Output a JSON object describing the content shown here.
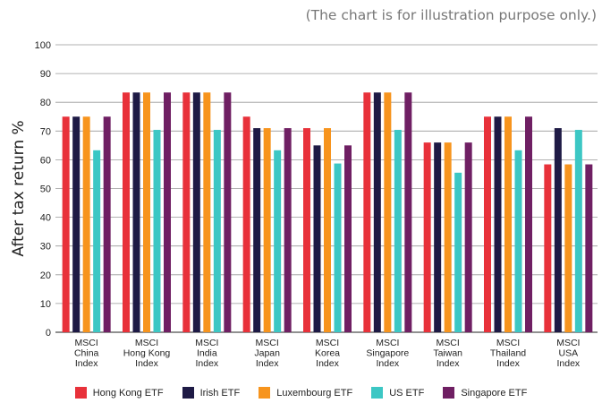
{
  "note": "(The chart is for illustration purpose only.)",
  "chart_data": {
    "type": "bar",
    "ylabel": "After tax return %",
    "ylim": [
      0,
      100
    ],
    "yticks": [
      0,
      10,
      20,
      30,
      40,
      50,
      60,
      70,
      80,
      90,
      100
    ],
    "grid": true,
    "legend_position": "bottom",
    "categories": [
      [
        "MSCI",
        "China",
        "Index"
      ],
      [
        "MSCI",
        "Hong Kong",
        "Index"
      ],
      [
        "MSCI",
        "India",
        "Index"
      ],
      [
        "MSCI",
        "Japan",
        "Index"
      ],
      [
        "MSCI",
        "Korea",
        "Index"
      ],
      [
        "MSCI",
        "Singapore",
        "Index"
      ],
      [
        "MSCI",
        "Taiwan",
        "Index"
      ],
      [
        "MSCI",
        "Thailand",
        "Index"
      ],
      [
        "MSCI",
        "USA",
        "Index"
      ]
    ],
    "series": [
      {
        "name": "Hong Kong ETF",
        "color": "#e8313a",
        "values": [
          75,
          83.4,
          83.4,
          75,
          71,
          83.4,
          66,
          75,
          58.4
        ]
      },
      {
        "name": "Irish ETF",
        "color": "#1e1a45",
        "values": [
          75,
          83.4,
          83.4,
          71,
          65,
          83.4,
          66,
          75,
          71
        ]
      },
      {
        "name": "Luxembourg ETF",
        "color": "#f7941d",
        "values": [
          75,
          83.4,
          83.4,
          71,
          71,
          83.4,
          66,
          75,
          58.4
        ]
      },
      {
        "name": "US ETF",
        "color": "#3cc7c4",
        "values": [
          63.3,
          70.4,
          70.4,
          63.3,
          58.7,
          70.4,
          55.5,
          63.3,
          70.4
        ]
      },
      {
        "name": "Singapore ETF",
        "color": "#6f1f63",
        "values": [
          75,
          83.4,
          83.4,
          71,
          65,
          83.4,
          66,
          75,
          58.4
        ]
      }
    ]
  }
}
